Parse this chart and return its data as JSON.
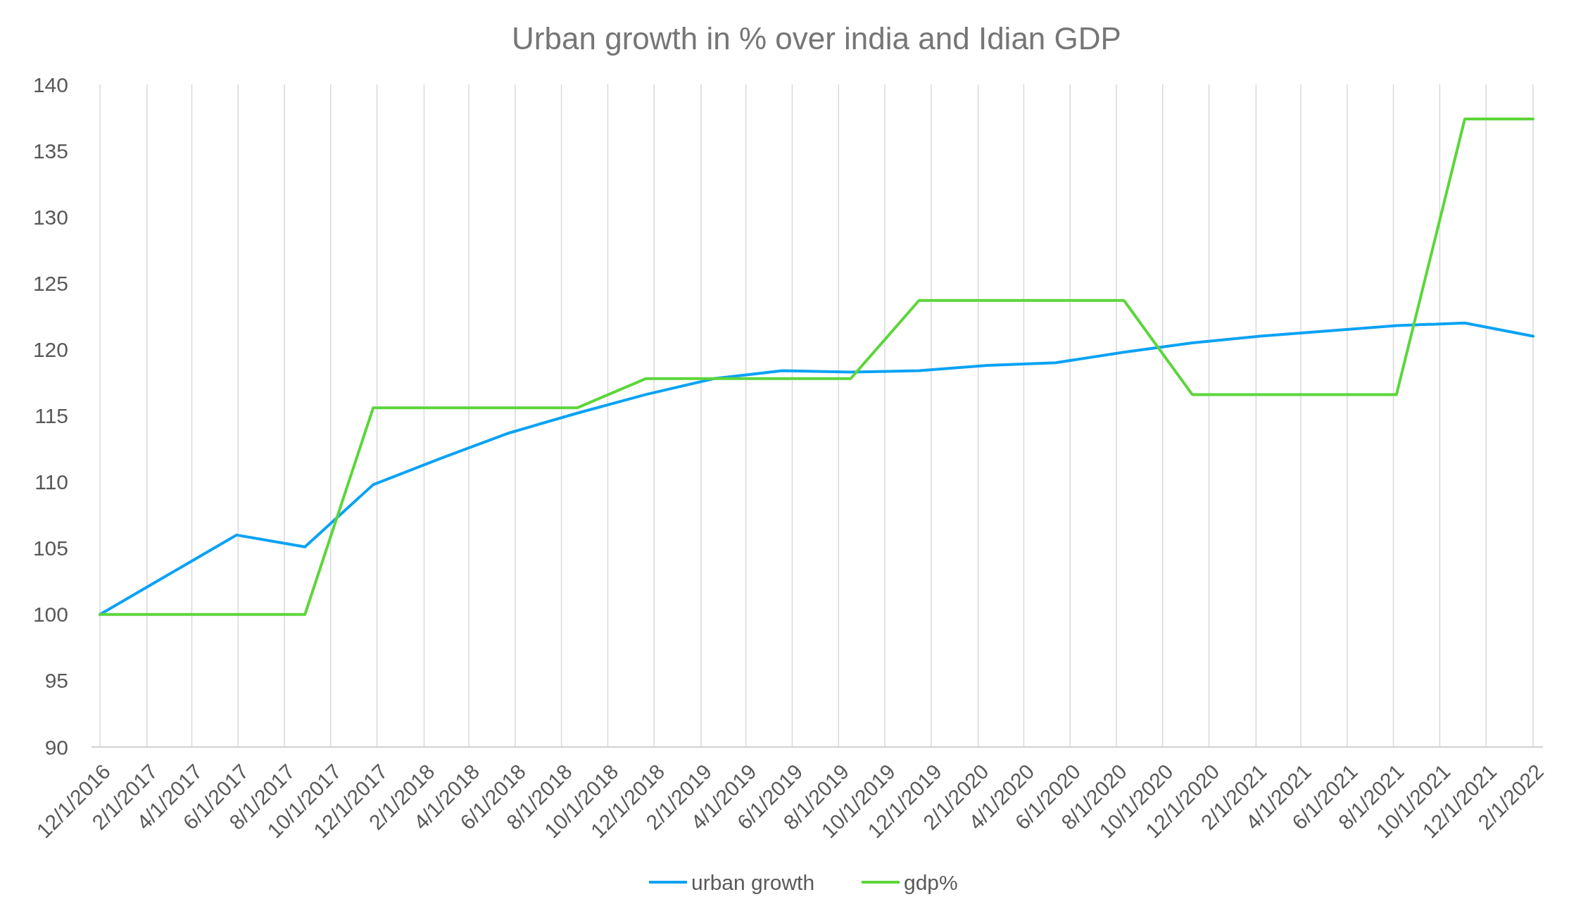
{
  "chart_data": {
    "type": "line",
    "title": "Urban growth in % over india and Idian GDP",
    "x": [
      "2016-12-01",
      "2017-03-01",
      "2017-05-30",
      "2017-08-28",
      "2017-11-26",
      "2018-02-24",
      "2018-05-24",
      "2018-08-22",
      "2018-11-20",
      "2019-02-18",
      "2019-05-19",
      "2019-08-17",
      "2019-11-15",
      "2020-02-13",
      "2020-05-13",
      "2020-08-11",
      "2020-11-09",
      "2021-02-06",
      "2021-05-07",
      "2021-08-05",
      "2021-11-03",
      "2022-02-01"
    ],
    "series": [
      {
        "name": "urban growth",
        "color": "#0aa2f5",
        "values": [
          100,
          103.0,
          106.0,
          105.1,
          109.8,
          111.8,
          113.7,
          115.2,
          116.6,
          117.8,
          118.4,
          118.3,
          118.4,
          118.8,
          119.0,
          119.8,
          120.5,
          121.0,
          121.4,
          121.8,
          122.0,
          121.0
        ]
      },
      {
        "name": "gdp%",
        "color": "#5cd63a",
        "values": [
          100,
          100,
          100,
          100,
          115.6,
          115.6,
          115.6,
          115.6,
          117.8,
          117.8,
          117.8,
          117.8,
          123.7,
          123.7,
          123.7,
          123.7,
          116.6,
          116.6,
          116.6,
          116.6,
          137.4,
          137.4
        ]
      }
    ],
    "xlim": [
      "2016-12-01",
      "2022-02-01"
    ],
    "xticks": [
      {
        "value": "2016-12-01",
        "label": "12/1/2016"
      },
      {
        "value": "2017-02-01",
        "label": "2/1/2017"
      },
      {
        "value": "2017-04-01",
        "label": "4/1/2017"
      },
      {
        "value": "2017-06-01",
        "label": "6/1/2017"
      },
      {
        "value": "2017-08-01",
        "label": "8/1/2017"
      },
      {
        "value": "2017-10-01",
        "label": "10/1/2017"
      },
      {
        "value": "2017-12-01",
        "label": "12/1/2017"
      },
      {
        "value": "2018-02-01",
        "label": "2/1/2018"
      },
      {
        "value": "2018-04-01",
        "label": "4/1/2018"
      },
      {
        "value": "2018-06-01",
        "label": "6/1/2018"
      },
      {
        "value": "2018-08-01",
        "label": "8/1/2018"
      },
      {
        "value": "2018-10-01",
        "label": "10/1/2018"
      },
      {
        "value": "2018-12-01",
        "label": "12/1/2018"
      },
      {
        "value": "2019-02-01",
        "label": "2/1/2019"
      },
      {
        "value": "2019-04-01",
        "label": "4/1/2019"
      },
      {
        "value": "2019-06-01",
        "label": "6/1/2019"
      },
      {
        "value": "2019-08-01",
        "label": "8/1/2019"
      },
      {
        "value": "2019-10-01",
        "label": "10/1/2019"
      },
      {
        "value": "2019-12-01",
        "label": "12/1/2019"
      },
      {
        "value": "2020-02-01",
        "label": "2/1/2020"
      },
      {
        "value": "2020-04-01",
        "label": "4/1/2020"
      },
      {
        "value": "2020-06-01",
        "label": "6/1/2020"
      },
      {
        "value": "2020-08-01",
        "label": "8/1/2020"
      },
      {
        "value": "2020-10-01",
        "label": "10/1/2020"
      },
      {
        "value": "2020-12-01",
        "label": "12/1/2020"
      },
      {
        "value": "2021-02-01",
        "label": "2/1/2021"
      },
      {
        "value": "2021-04-01",
        "label": "4/1/2021"
      },
      {
        "value": "2021-06-01",
        "label": "6/1/2021"
      },
      {
        "value": "2021-08-01",
        "label": "8/1/2021"
      },
      {
        "value": "2021-10-01",
        "label": "10/1/2021"
      },
      {
        "value": "2021-12-01",
        "label": "12/1/2021"
      },
      {
        "value": "2022-02-01",
        "label": "2/1/2022"
      }
    ],
    "ylim": [
      90,
      140
    ],
    "yticks": [
      90,
      95,
      100,
      105,
      110,
      115,
      120,
      125,
      130,
      135,
      140
    ],
    "grid": "x",
    "legend": "bottom",
    "marker": "none",
    "line_style": "solid"
  }
}
